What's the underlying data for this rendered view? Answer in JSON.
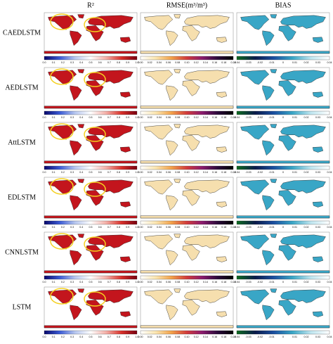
{
  "columns": [
    {
      "title": "R²",
      "map_color": "#c3151d",
      "colorbar": {
        "colors": [
          "#08086b",
          "#3b5bd6",
          "#b8c8f0",
          "#ffffff",
          "#f4b0a8",
          "#d9302a",
          "#7a0010"
        ],
        "ticks": [
          "0.0",
          "0.1",
          "0.2",
          "0.3",
          "0.4",
          "0.5",
          "0.6",
          "0.7",
          "0.8",
          "0.9",
          "1.0"
        ]
      }
    },
    {
      "title": "RMSE(m³/m³)",
      "map_color": "#f6dfae",
      "colorbar": {
        "colors": [
          "#ffffff",
          "#fbe6b0",
          "#f3a24a",
          "#d23b3b",
          "#8a1a6e",
          "#2a0a3a",
          "#000000"
        ],
        "ticks": [
          "0.00",
          "0.02",
          "0.04",
          "0.06",
          "0.08",
          "0.10",
          "0.12",
          "0.14",
          "0.16",
          "0.18",
          "0.20"
        ]
      }
    },
    {
      "title": "BIAS",
      "map_color": "#39a6c6",
      "colorbar": {
        "colors": [
          "#0d6b1f",
          "#0a1a4a",
          "#1a4fa0",
          "#39a6c6",
          "#bfe6f0",
          "#ffffff"
        ],
        "ticks": [
          "-0.04",
          "-0.03",
          "-0.02",
          "-0.01",
          "0",
          "0.01",
          "0.02",
          "0.03",
          "0.04"
        ]
      }
    }
  ],
  "rows": [
    "CAEDLSTM",
    "AEDLSTM",
    "AttLSTM",
    "EDLSTM",
    "CNNLSTM",
    "LSTM"
  ]
}
